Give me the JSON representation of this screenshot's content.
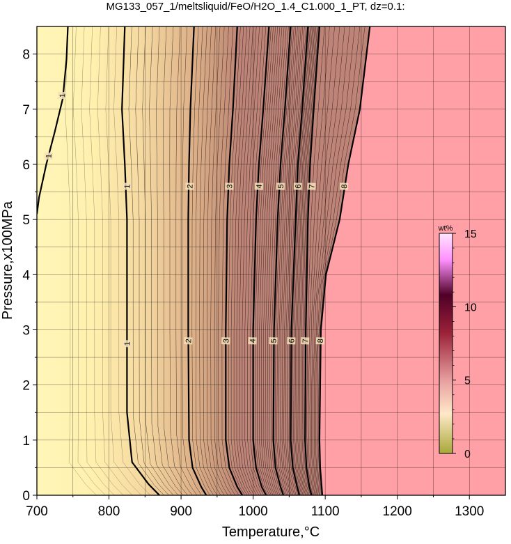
{
  "chart_data": {
    "type": "heatmap",
    "title": "MG133_057_1/meltsliquid/FeO/H2O_1.4_C1.000_1_PT, dz=0.1:",
    "xlabel": "Temperature,°C",
    "ylabel": "Pressure,x100MPa",
    "xlim": [
      700,
      1350
    ],
    "ylim": [
      0,
      8.5
    ],
    "x_ticks": [
      700,
      800,
      900,
      1000,
      1100,
      1200,
      1300
    ],
    "y_ticks": [
      0,
      1,
      2,
      3,
      4,
      5,
      6,
      7,
      8
    ],
    "grid": true,
    "colorbar": {
      "label": "wt%",
      "range": [
        0,
        15
      ],
      "ticks": [
        0,
        5,
        10,
        15
      ],
      "placement": "right"
    },
    "contour_interval": 0.1,
    "labeled_contours": [
      {
        "level": "1",
        "points": [
          [
            822,
            8.5
          ],
          [
            818,
            7.0
          ],
          [
            822,
            6.0
          ],
          [
            825,
            5.0
          ],
          [
            825,
            3.0
          ],
          [
            825,
            1.5
          ],
          [
            832,
            0.6
          ],
          [
            855,
            0.2
          ],
          [
            870,
            0
          ]
        ]
      },
      {
        "level": "2",
        "points": [
          [
            918,
            8.5
          ],
          [
            913,
            7.0
          ],
          [
            911,
            6.0
          ],
          [
            910,
            5.0
          ],
          [
            910,
            3.0
          ],
          [
            911,
            1.0
          ],
          [
            916,
            0.5
          ],
          [
            928,
            0.15
          ],
          [
            935,
            0
          ]
        ]
      },
      {
        "level": "3",
        "points": [
          [
            978,
            8.5
          ],
          [
            972,
            7.0
          ],
          [
            967,
            6.0
          ],
          [
            964,
            5.0
          ],
          [
            962,
            3.0
          ],
          [
            962,
            1.0
          ],
          [
            967,
            0.5
          ],
          [
            978,
            0.15
          ],
          [
            985,
            0
          ]
        ]
      },
      {
        "level": "4",
        "points": [
          [
            1022,
            8.5
          ],
          [
            1014,
            7.0
          ],
          [
            1008,
            6.0
          ],
          [
            1004,
            5.0
          ],
          [
            1000,
            3.0
          ],
          [
            1000,
            1.0
          ],
          [
            1004,
            0.5
          ],
          [
            1012,
            0.15
          ],
          [
            1018,
            0
          ]
        ]
      },
      {
        "level": "5",
        "points": [
          [
            1052,
            8.5
          ],
          [
            1044,
            7.0
          ],
          [
            1038,
            6.0
          ],
          [
            1034,
            5.0
          ],
          [
            1029,
            3.0
          ],
          [
            1028,
            1.0
          ],
          [
            1031,
            0.5
          ],
          [
            1038,
            0.15
          ],
          [
            1042,
            0
          ]
        ]
      },
      {
        "level": "6",
        "points": [
          [
            1076,
            8.5
          ],
          [
            1068,
            7.0
          ],
          [
            1062,
            6.0
          ],
          [
            1059,
            5.0
          ],
          [
            1053,
            3.0
          ],
          [
            1052,
            1.0
          ],
          [
            1055,
            0.5
          ],
          [
            1061,
            0.15
          ],
          [
            1064,
            0
          ]
        ]
      },
      {
        "level": "7",
        "points": [
          [
            1092,
            8.5
          ],
          [
            1084,
            7.0
          ],
          [
            1079,
            6.0
          ],
          [
            1076,
            5.0
          ],
          [
            1073,
            3.0
          ],
          [
            1072,
            1.0
          ],
          [
            1074,
            0.5
          ],
          [
            1078,
            0.15
          ],
          [
            1081,
            0
          ]
        ]
      },
      {
        "level": "8",
        "points": [
          [
            1162,
            8.5
          ],
          [
            1148,
            7.0
          ],
          [
            1132,
            6.0
          ],
          [
            1120,
            5.0
          ],
          [
            1101,
            4.0
          ],
          [
            1094,
            3.0
          ],
          [
            1092,
            1.0
          ],
          [
            1093,
            0.5
          ],
          [
            1096,
            0
          ]
        ]
      },
      {
        "level": "1",
        "points": [
          [
            743,
            8.5
          ],
          [
            741,
            7.9
          ],
          [
            736,
            7.2
          ],
          [
            725,
            6.6
          ],
          [
            713,
            6.0
          ],
          [
            703,
            5.4
          ],
          [
            700,
            5.1
          ]
        ]
      }
    ],
    "contour_labels": [
      {
        "text": "1",
        "x": 735,
        "y": 7.25
      },
      {
        "text": "1",
        "x": 716,
        "y": 6.15
      },
      {
        "text": "1",
        "x": 825,
        "y": 5.6
      },
      {
        "text": "1",
        "x": 825,
        "y": 2.75
      },
      {
        "text": "2",
        "x": 912,
        "y": 5.6
      },
      {
        "text": "2",
        "x": 910,
        "y": 2.8
      },
      {
        "text": "3",
        "x": 967,
        "y": 5.6
      },
      {
        "text": "3",
        "x": 962,
        "y": 2.8
      },
      {
        "text": "4",
        "x": 1008,
        "y": 5.6
      },
      {
        "text": "4",
        "x": 999,
        "y": 2.8
      },
      {
        "text": "5",
        "x": 1038,
        "y": 5.6
      },
      {
        "text": "5",
        "x": 1028,
        "y": 2.8
      },
      {
        "text": "6",
        "x": 1062,
        "y": 5.6
      },
      {
        "text": "6",
        "x": 1053,
        "y": 2.8
      },
      {
        "text": "7",
        "x": 1081,
        "y": 5.6
      },
      {
        "text": "7",
        "x": 1072,
        "y": 2.8
      },
      {
        "text": "8",
        "x": 1126,
        "y": 5.6
      },
      {
        "text": "8",
        "x": 1093,
        "y": 2.8
      }
    ],
    "colors": {
      "low": "#fff2b0",
      "mid": "#d2a77e",
      "high": "#ff9fa6",
      "colorbar_stops": [
        "#a8a838",
        "#ffe8c8",
        "#c05050",
        "#500020",
        "#ff80ff"
      ]
    }
  }
}
